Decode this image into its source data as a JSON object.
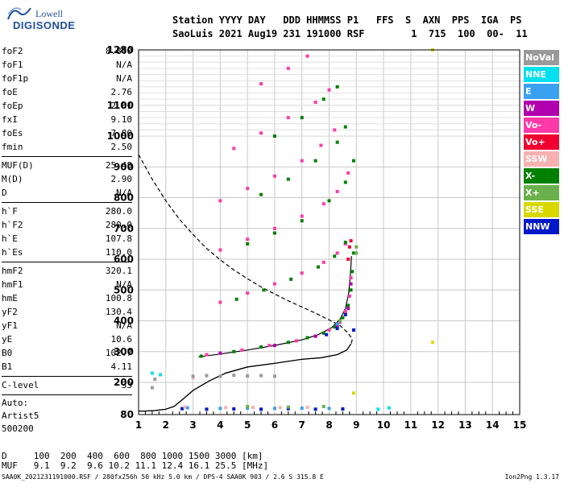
{
  "logo": {
    "line1": "Lowell",
    "line2": "DIGISONDE"
  },
  "header": {
    "labels": "Station YYYY DAY   DDD HHMMSS P1   FFS  S  AXN  PPS  IGA  PS",
    "values": "SaoLuis 2021 Aug19 231 191000 RSF        1  715  100  00-  11"
  },
  "params_group1": [
    {
      "label": "foF2",
      "value": "8.800"
    },
    {
      "label": "foF1",
      "value": "N/A"
    },
    {
      "label": "foF1p",
      "value": "N/A"
    },
    {
      "label": "foE",
      "value": "2.76"
    },
    {
      "label": "foEp",
      "value": "2.61"
    },
    {
      "label": "fxI",
      "value": "9.10"
    },
    {
      "label": "foEs",
      "value": "7.80"
    },
    {
      "label": "fmin",
      "value": "2.50"
    }
  ],
  "params_group2": [
    {
      "label": "MUF(D)",
      "value": "25.48"
    },
    {
      "label": "M(D)",
      "value": "2.90"
    },
    {
      "label": "D",
      "value": "N/A"
    }
  ],
  "params_group3": [
    {
      "label": "h`F",
      "value": "280.0"
    },
    {
      "label": "h`F2",
      "value": "280.0"
    },
    {
      "label": "h`E",
      "value": "107.8"
    },
    {
      "label": "h`Es",
      "value": "110.0"
    }
  ],
  "params_group4": [
    {
      "label": "hmF2",
      "value": "320.1"
    },
    {
      "label": "hmF1",
      "value": "N/A"
    },
    {
      "label": "hmE",
      "value": "100.8"
    },
    {
      "label": "yF2",
      "value": "130.4"
    },
    {
      "label": "yF1",
      "value": "N/A"
    },
    {
      "label": "yE",
      "value": "10.6"
    },
    {
      "label": "B0",
      "value": "102.7"
    },
    {
      "label": "B1",
      "value": "4.11"
    }
  ],
  "params_group5": [
    {
      "label": "C-level",
      "value": "33"
    }
  ],
  "auto": {
    "line1": "Auto:",
    "line2": "Artist5",
    "line3": "500200"
  },
  "legend": [
    {
      "label": "NoVal",
      "color": "#9a9a9a"
    },
    {
      "label": "NNE",
      "color": "#00e0f0"
    },
    {
      "label": "E",
      "color": "#3aa0f0"
    },
    {
      "label": "W",
      "color": "#b000b0"
    },
    {
      "label": "Vo-",
      "color": "#ff3aa8"
    },
    {
      "label": "Vo+",
      "color": "#f00030"
    },
    {
      "label": "SSW",
      "color": "#f8b0b0"
    },
    {
      "label": "X-",
      "color": "#008000"
    },
    {
      "label": "X+",
      "color": "#6ab04c"
    },
    {
      "label": "SSE",
      "color": "#d8d800"
    },
    {
      "label": "NNW",
      "color": "#0018c8"
    }
  ],
  "footer": {
    "line1": "D     100  200  400  600  800 1000 1500 3000 [km]",
    "line2": "MUF   9.1  9.2  9.6 10.2 11.1 12.4 16.1 25.5 [MHz]",
    "line3": "SAA0K_2021231191000.RSF / 280fx256h 50 kHz 5.0 km / DPS-4 SAA0K 903 / 2.6 S 315.8 E",
    "version": "Ion2Png 1.3.17"
  },
  "chart_data": {
    "type": "scatter",
    "x_ticks": [
      "1",
      "2",
      "3",
      "4",
      "5",
      "6",
      "7",
      "8",
      "9",
      "10",
      "11",
      "12",
      "13",
      "14",
      "15"
    ],
    "y_ticks": [
      "80",
      "200",
      "300",
      "400",
      "500",
      "600",
      "700",
      "800",
      "900",
      "1000",
      "1100",
      "1280"
    ],
    "xlim": [
      1,
      15
    ],
    "ylim": [
      80,
      1280
    ],
    "grid": true,
    "series": [
      {
        "name": "X-",
        "color": "#008000",
        "points": [
          [
            3.3,
            285
          ],
          [
            4.5,
            300
          ],
          [
            5.5,
            315
          ],
          [
            6.5,
            330
          ],
          [
            7.2,
            345
          ],
          [
            7.8,
            360
          ],
          [
            8.2,
            380
          ],
          [
            8.5,
            410
          ],
          [
            8.7,
            450
          ],
          [
            8.8,
            500
          ],
          [
            8.85,
            560
          ],
          [
            8.9,
            620
          ]
        ]
      },
      {
        "name": "Vo-",
        "color": "#ff3aa8",
        "points": [
          [
            3.5,
            290
          ],
          [
            4.8,
            305
          ],
          [
            5.8,
            320
          ],
          [
            6.8,
            335
          ],
          [
            7.5,
            350
          ],
          [
            8.0,
            370
          ],
          [
            8.4,
            395
          ],
          [
            8.6,
            430
          ],
          [
            8.75,
            480
          ],
          [
            8.8,
            540
          ]
        ]
      },
      {
        "name": "Vo+",
        "color": "#f00030",
        "points": [
          [
            8.7,
            600
          ],
          [
            8.75,
            640
          ],
          [
            8.8,
            660
          ]
        ]
      },
      {
        "name": "W",
        "color": "#b000b0",
        "points": [
          [
            4.0,
            295
          ],
          [
            6.0,
            320
          ],
          [
            7.5,
            350
          ],
          [
            8.3,
            385
          ],
          [
            8.7,
            440
          ],
          [
            8.8,
            520
          ]
        ]
      },
      {
        "name": "NNW",
        "color": "#0018c8",
        "points": [
          [
            2.6,
            102
          ],
          [
            3.5,
            100
          ],
          [
            4.5,
            101
          ],
          [
            5.5,
            100
          ],
          [
            6.5,
            102
          ],
          [
            7.5,
            100
          ],
          [
            8.5,
            101
          ],
          [
            7.9,
            355
          ],
          [
            8.3,
            375
          ],
          [
            8.6,
            420
          ],
          [
            8.9,
            370
          ]
        ]
      },
      {
        "name": "E",
        "color": "#3aa0f0",
        "points": [
          [
            2.8,
            105
          ],
          [
            4.0,
            103
          ],
          [
            5.0,
            104
          ],
          [
            6.0,
            103
          ],
          [
            7.0,
            104
          ],
          [
            8.0,
            103
          ],
          [
            8.3,
            390
          ]
        ]
      },
      {
        "name": "SSW",
        "color": "#f8b0b0",
        "points": [
          [
            2.7,
            108
          ],
          [
            4.2,
            106
          ],
          [
            5.2,
            107
          ],
          [
            6.2,
            106
          ],
          [
            7.2,
            107
          ],
          [
            3.0,
            215
          ],
          [
            5.0,
            220
          ]
        ]
      },
      {
        "name": "X+",
        "color": "#6ab04c",
        "points": [
          [
            5.0,
            110
          ],
          [
            6.5,
            108
          ],
          [
            7.8,
            110
          ],
          [
            9.0,
            620
          ],
          [
            9.0,
            640
          ],
          [
            8.4,
            400
          ]
        ]
      },
      {
        "name": "NoVal",
        "color": "#9a9a9a",
        "points": [
          [
            3.0,
            220
          ],
          [
            3.5,
            222
          ],
          [
            4.0,
            220
          ],
          [
            4.5,
            223
          ],
          [
            5.0,
            221
          ],
          [
            5.5,
            222
          ],
          [
            6.0,
            220
          ],
          [
            1.6,
            210
          ],
          [
            1.5,
            180
          ]
        ]
      },
      {
        "name": "NNE",
        "color": "#00e0f0",
        "points": [
          [
            1.5,
            230
          ],
          [
            1.8,
            225
          ],
          [
            9.8,
            100
          ],
          [
            10.2,
            105
          ]
        ]
      },
      {
        "name": "SSE",
        "color": "#d8d800",
        "points": [
          [
            11.8,
            1280
          ],
          [
            11.8,
            330
          ],
          [
            8.9,
            160
          ]
        ]
      },
      {
        "name": "Vo- (2F2 trace)",
        "color": "#ff3aa8",
        "points": [
          [
            4.0,
            460
          ],
          [
            5.0,
            490
          ],
          [
            6.0,
            520
          ],
          [
            7.0,
            555
          ],
          [
            7.8,
            590
          ],
          [
            8.3,
            620
          ],
          [
            8.6,
            650
          ]
        ]
      },
      {
        "name": "X- (2F2 trace)",
        "color": "#008000",
        "points": [
          [
            4.6,
            470
          ],
          [
            5.6,
            500
          ],
          [
            6.6,
            535
          ],
          [
            7.6,
            575
          ],
          [
            8.2,
            610
          ],
          [
            8.6,
            655
          ]
        ]
      },
      {
        "name": "Vo- (3F2 trace)",
        "color": "#ff3aa8",
        "points": [
          [
            4.0,
            630
          ],
          [
            5.0,
            665
          ],
          [
            6.0,
            700
          ],
          [
            7.0,
            740
          ],
          [
            7.8,
            780
          ],
          [
            8.3,
            820
          ],
          [
            8.7,
            880
          ]
        ]
      },
      {
        "name": "X- (3F2 trace)",
        "color": "#008000",
        "points": [
          [
            5.0,
            650
          ],
          [
            6.0,
            685
          ],
          [
            7.0,
            725
          ],
          [
            8.0,
            790
          ],
          [
            8.6,
            850
          ],
          [
            8.9,
            920
          ]
        ]
      },
      {
        "name": "Vo- (4F2 trace)",
        "color": "#ff3aa8",
        "points": [
          [
            4.0,
            790
          ],
          [
            5.0,
            830
          ],
          [
            6.0,
            870
          ],
          [
            7.0,
            920
          ],
          [
            7.7,
            970
          ],
          [
            8.2,
            1020
          ]
        ]
      },
      {
        "name": "X- (4F2 trace)",
        "color": "#008000",
        "points": [
          [
            5.5,
            810
          ],
          [
            6.5,
            860
          ],
          [
            7.5,
            920
          ],
          [
            8.3,
            980
          ],
          [
            8.6,
            1030
          ]
        ]
      },
      {
        "name": "Vo- (5F2 trace)",
        "color": "#ff3aa8",
        "points": [
          [
            4.5,
            960
          ],
          [
            5.5,
            1010
          ],
          [
            6.5,
            1060
          ],
          [
            7.5,
            1110
          ],
          [
            8.0,
            1150
          ]
        ]
      },
      {
        "name": "X- (5F2 trace)",
        "color": "#008000",
        "points": [
          [
            6.0,
            1000
          ],
          [
            7.0,
            1060
          ],
          [
            7.8,
            1120
          ],
          [
            8.3,
            1160
          ]
        ]
      },
      {
        "name": "Vo- (6F2 trace)",
        "color": "#ff3aa8",
        "points": [
          [
            5.5,
            1170
          ],
          [
            6.5,
            1220
          ],
          [
            7.2,
            1260
          ]
        ]
      }
    ],
    "curves": [
      {
        "kind": "virtual-height",
        "style": "solid",
        "points": [
          [
            8.8,
            325
          ],
          [
            8.65,
            305
          ],
          [
            8.3,
            290
          ],
          [
            7.7,
            280
          ],
          [
            7.0,
            275
          ],
          [
            6.0,
            262
          ],
          [
            5.0,
            250
          ],
          [
            4.2,
            230
          ],
          [
            3.6,
            205
          ],
          [
            3.0,
            170
          ],
          [
            2.6,
            135
          ],
          [
            2.3,
            110
          ],
          [
            2.0,
            100
          ],
          [
            1.6,
            95
          ],
          [
            1.2,
            93
          ],
          [
            1.0,
            93
          ]
        ]
      },
      {
        "kind": "virtual-height",
        "style": "solid",
        "points": [
          [
            8.8,
            325
          ],
          [
            8.65,
            305
          ],
          [
            8.3,
            290
          ],
          [
            7.7,
            280
          ],
          [
            7.0,
            275
          ],
          [
            6.0,
            262
          ],
          [
            5.0,
            250
          ],
          [
            4.2,
            230
          ],
          [
            3.6,
            205
          ],
          [
            3.0,
            170
          ],
          [
            2.6,
            135
          ],
          [
            2.3,
            110
          ],
          [
            2.0,
            100
          ],
          [
            1.6,
            95
          ],
          [
            1.2,
            93
          ],
          [
            1.0,
            93
          ]
        ]
      },
      {
        "kind": "electron-density",
        "style": "dashed",
        "points": [
          [
            1.0,
            940
          ],
          [
            1.5,
            860
          ],
          [
            2.0,
            790
          ],
          [
            2.5,
            730
          ],
          [
            3.0,
            680
          ],
          [
            3.5,
            635
          ],
          [
            4.0,
            598
          ],
          [
            4.5,
            565
          ],
          [
            5.0,
            537
          ],
          [
            5.5,
            510
          ],
          [
            6.0,
            487
          ],
          [
            6.5,
            465
          ],
          [
            7.0,
            445
          ],
          [
            7.5,
            425
          ],
          [
            8.0,
            403
          ],
          [
            8.4,
            385
          ],
          [
            8.7,
            360
          ],
          [
            8.85,
            340
          ],
          [
            8.8,
            320
          ]
        ]
      },
      {
        "kind": "trace",
        "style": "solid",
        "points": [
          [
            3.2,
            283
          ],
          [
            4.0,
            292
          ],
          [
            5.0,
            305
          ],
          [
            6.0,
            320
          ],
          [
            7.0,
            338
          ],
          [
            7.6,
            355
          ],
          [
            8.1,
            378
          ],
          [
            8.4,
            405
          ],
          [
            8.6,
            440
          ],
          [
            8.72,
            490
          ],
          [
            8.78,
            550
          ],
          [
            8.82,
            610
          ]
        ]
      }
    ]
  }
}
